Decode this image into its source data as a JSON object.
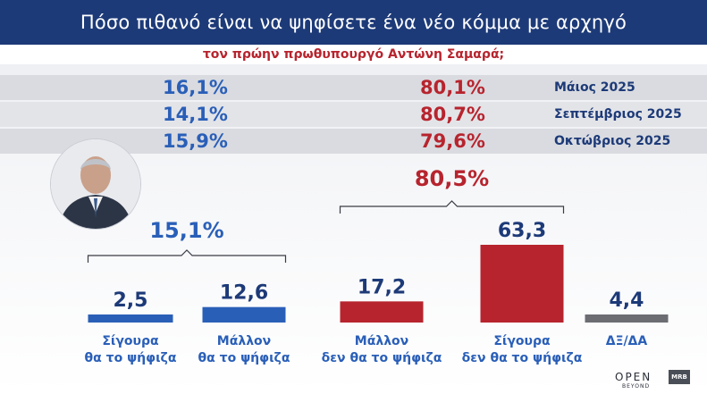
{
  "header": {
    "title": "Πόσο πιθανό είναι να ψηφίσετε ένα νέο κόμμα με αρχηγό",
    "subtitle": "τον πρώην πρωθυπουργό Αντώνη Σαμαρά;"
  },
  "history": [
    {
      "yes": "16,1%",
      "no": "80,1%",
      "month": "Μάιος 2025"
    },
    {
      "yes": "14,1%",
      "no": "80,7%",
      "month": "Σεπτέμβριος 2025"
    },
    {
      "yes": "15,9%",
      "no": "79,6%",
      "month": "Οκτώβριος 2025"
    }
  ],
  "chart_data": {
    "type": "bar",
    "categories": [
      [
        "Σίγουρα",
        "θα το ψήφιζα"
      ],
      [
        "Μάλλον",
        "θα το ψήφιζα"
      ],
      [
        "Μάλλον",
        "δεν θα το ψήφιζα"
      ],
      [
        "Σίγουρα",
        "δεν θα το ψήφιζα"
      ],
      [
        "ΔΞ/ΔΑ"
      ]
    ],
    "values": [
      2.5,
      12.6,
      17.2,
      63.3,
      4.4
    ],
    "value_labels": [
      "2,5",
      "12,6",
      "17,2",
      "63,3",
      "4,4"
    ],
    "groups": [
      {
        "label": "15,1%",
        "from": 0,
        "to": 1,
        "color": "#2a5fb8"
      },
      {
        "label": "80,5%",
        "from": 2,
        "to": 3,
        "color": "#b7242e"
      }
    ],
    "colors": [
      "#2a5fb8",
      "#2a5fb8",
      "#b7242e",
      "#b7242e",
      "#6b6d72"
    ],
    "ylim": [
      0,
      70
    ]
  },
  "colors": {
    "title_bg": "#1d3a78",
    "blue": "#2a5fb8",
    "red": "#b7242e",
    "gray": "#6b6d72",
    "text_dark": "#1d3a78"
  },
  "logos": {
    "open": "OPEN",
    "open_sub": "BEYOND",
    "mrb": "MRB"
  }
}
